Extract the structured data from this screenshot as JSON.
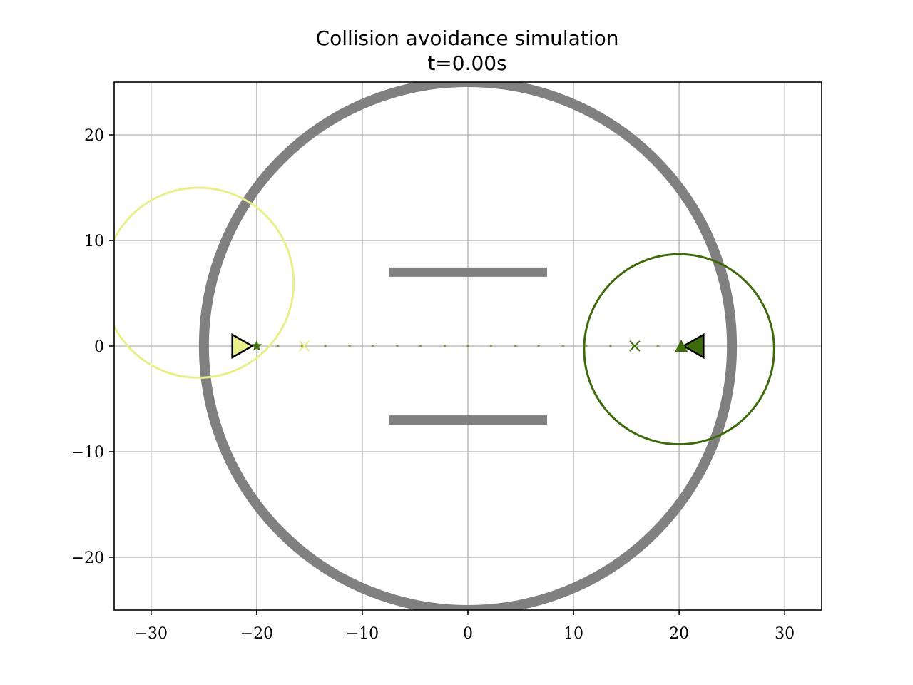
{
  "chart_data": {
    "type": "scatter",
    "title": "Collision avoidance simulation",
    "subtitle": "t=0.00s",
    "xlabel": "",
    "ylabel": "",
    "xlim": [
      -33.5,
      33.5
    ],
    "ylim": [
      -25,
      25
    ],
    "xticks": [
      -30,
      -20,
      -10,
      0,
      10,
      20,
      30
    ],
    "xtick_labels": [
      "−30",
      "−20",
      "−10",
      "0",
      "10",
      "20",
      "30"
    ],
    "yticks": [
      -20,
      -10,
      0,
      10,
      20
    ],
    "ytick_labels": [
      "−20",
      "−10",
      "0",
      "10",
      "20"
    ],
    "grid": true,
    "obstacles": {
      "color": "#808080",
      "boundary_circle": {
        "center": [
          0,
          0
        ],
        "radius": 25
      },
      "walls": [
        {
          "x": [
            -7.5,
            7.5
          ],
          "y": 7
        },
        {
          "x": [
            -7.5,
            7.5
          ],
          "y": -7
        }
      ]
    },
    "agents": [
      {
        "color": "#e8ef8a",
        "position": [
          -21.5,
          0
        ],
        "heading": "right",
        "goal_star": [
          -20,
          0
        ],
        "waypoint_x": [
          -15.5,
          0
        ],
        "sensing_circle": {
          "center": [
            -25.5,
            6
          ],
          "radius": 9
        }
      },
      {
        "color": "#3d6b0a",
        "position": [
          21.5,
          0
        ],
        "heading": "left",
        "goal_triangle": [
          20.2,
          0
        ],
        "waypoint_x": [
          15.8,
          0
        ],
        "sensing_circle": {
          "center": [
            20,
            -0.3
          ],
          "radius": 9
        }
      }
    ],
    "path_dots": {
      "color": "#8b9a4a",
      "y": 0,
      "x": [
        -18.0,
        -15.7,
        -13.5,
        -11.2,
        -9.0,
        -6.7,
        -4.5,
        -2.2,
        0.0,
        2.2,
        4.5,
        6.7,
        9.0,
        11.2,
        13.5,
        15.7,
        18.0
      ]
    }
  }
}
